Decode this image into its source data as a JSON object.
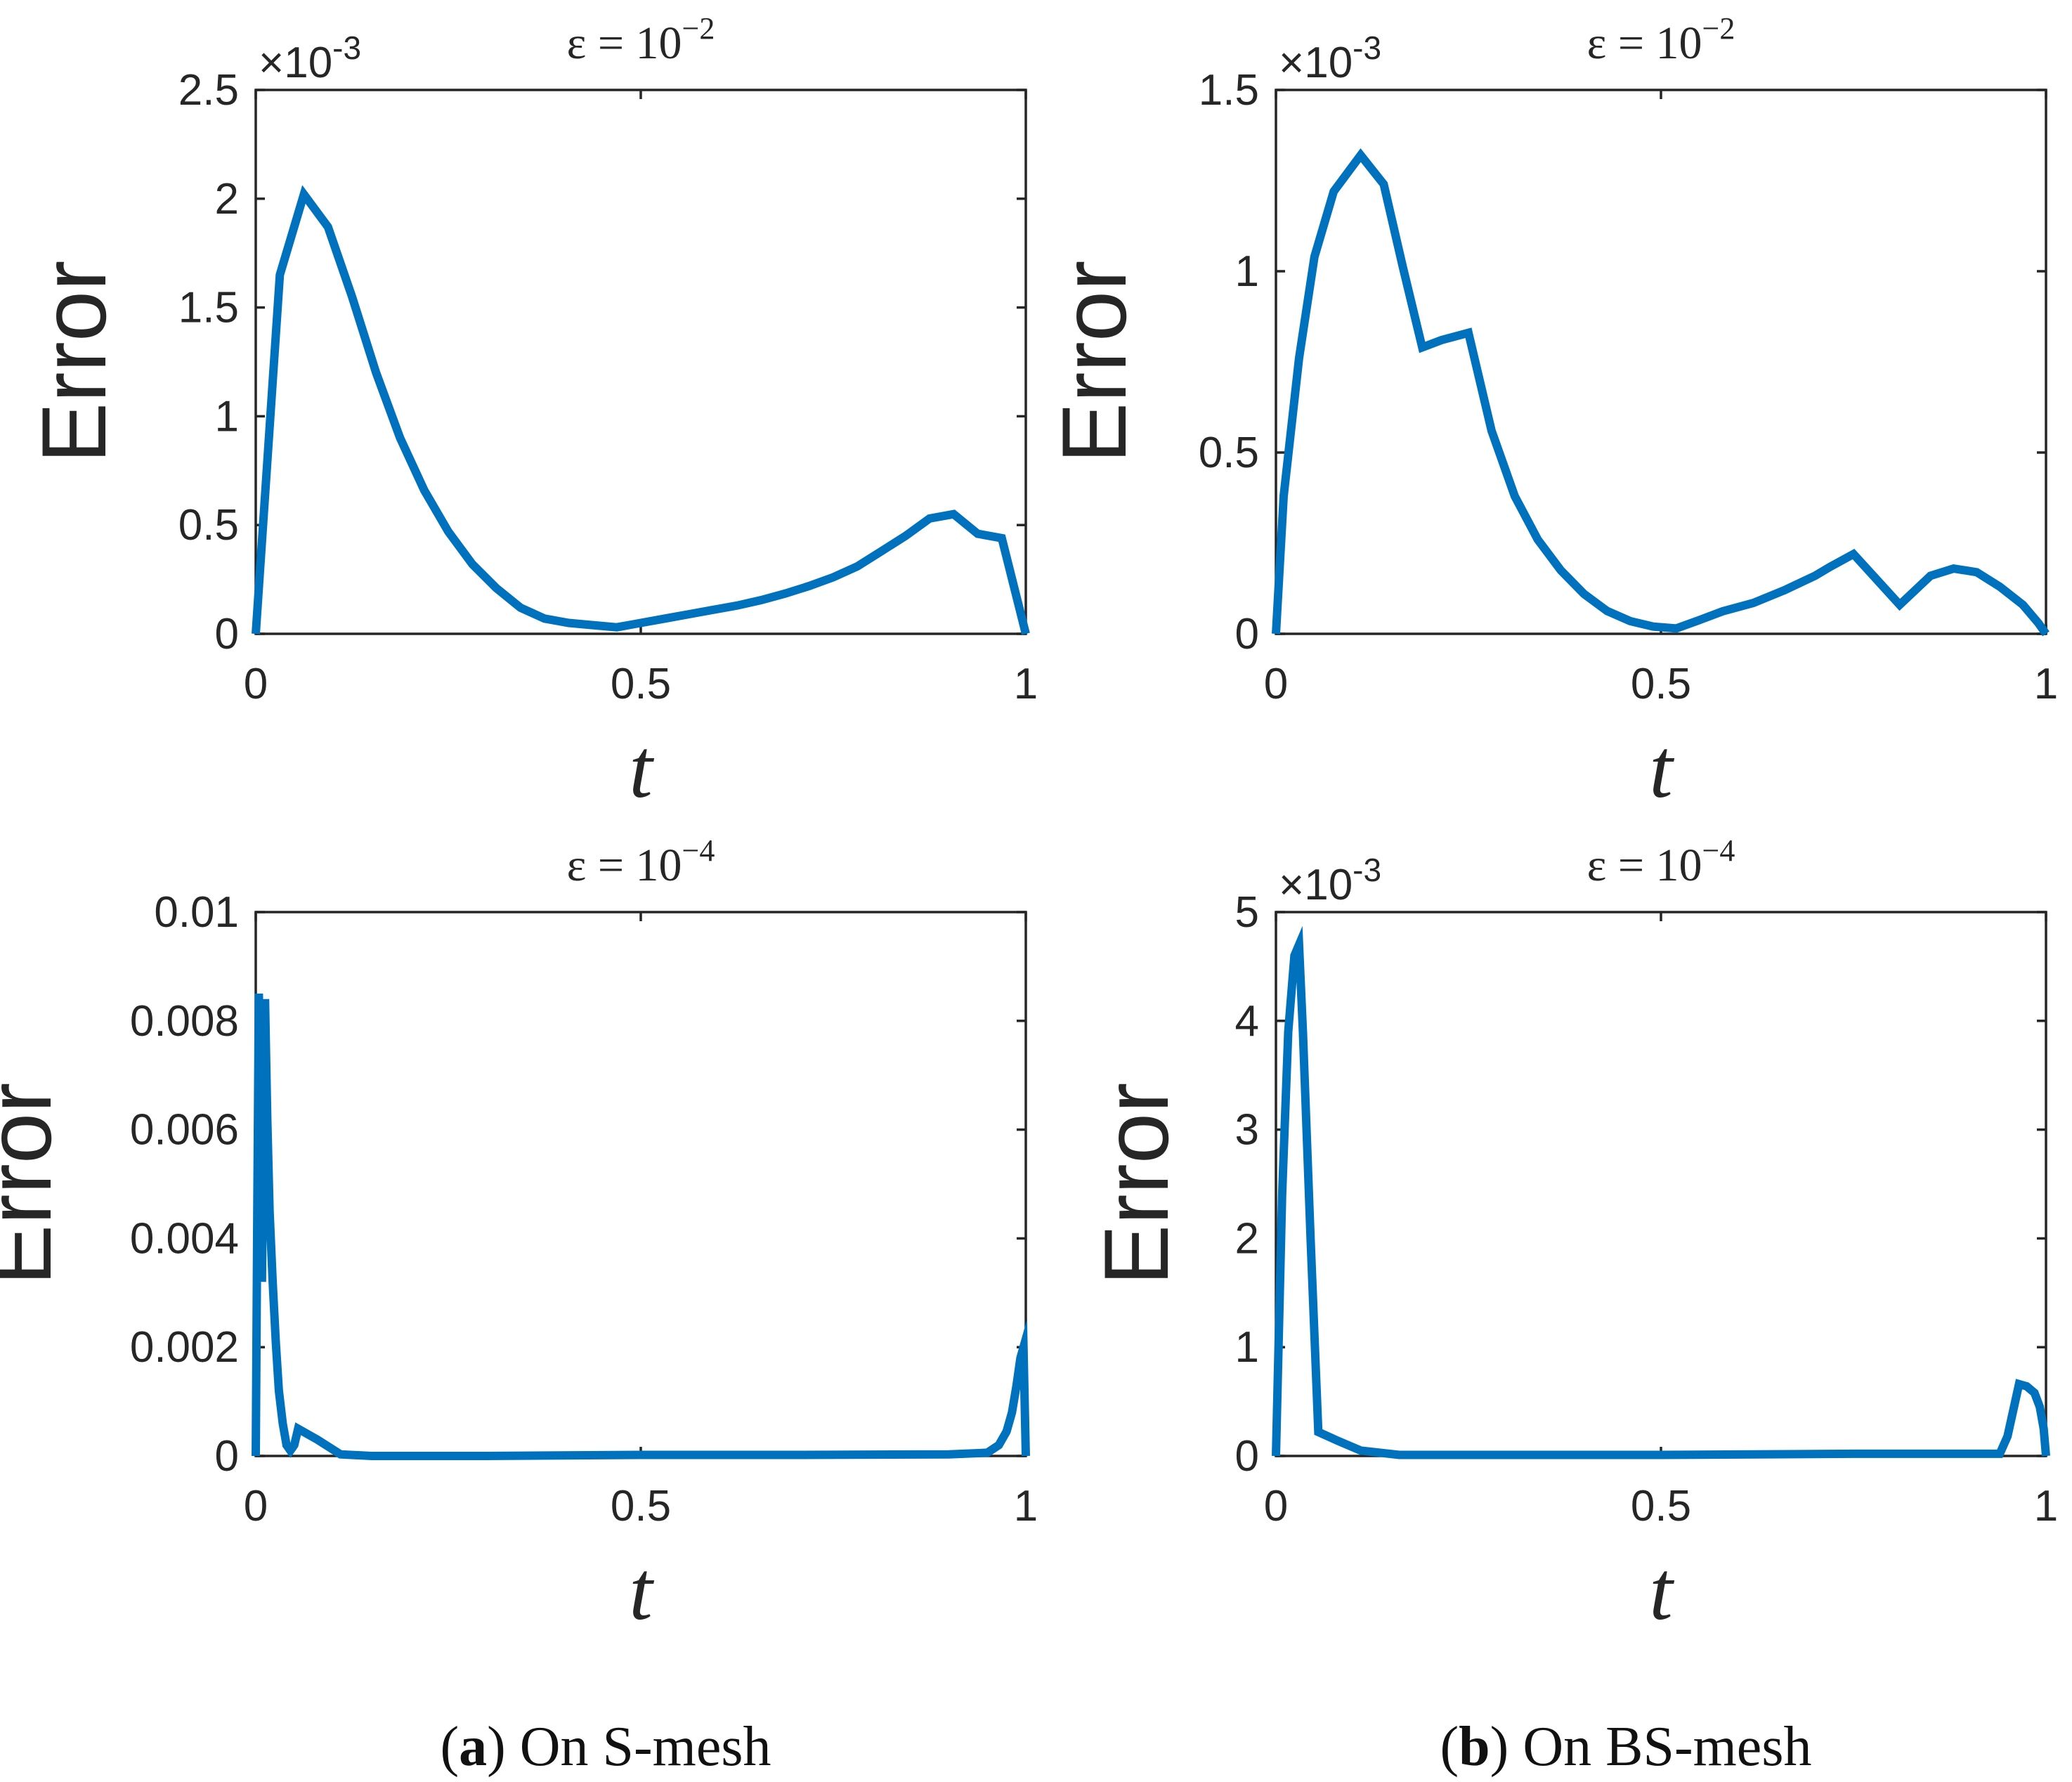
{
  "colors": {
    "series": "#0072bd",
    "axis": "#262626",
    "background": "#ffffff"
  },
  "chart_data": [
    {
      "type": "line",
      "title_prefix": "ε = 10",
      "title_exponent": "−2",
      "xlabel": "t",
      "ylabel": "Error",
      "exponent_label": "×10",
      "exponent_value": "-3",
      "xlim": [
        0,
        1
      ],
      "ylim": [
        0,
        2.5
      ],
      "xticks": [
        0,
        0.5,
        1
      ],
      "xtick_labels": [
        "0",
        "0.5",
        "1"
      ],
      "yticks": [
        0,
        0.5,
        1,
        1.5,
        2,
        2.5
      ],
      "ytick_labels": [
        "0",
        "0.5",
        "1",
        "1.5",
        "2",
        "2.5"
      ],
      "series": [
        {
          "name": "Error",
          "x": [
            0,
            0.03125,
            0.0625,
            0.09375,
            0.125,
            0.15625,
            0.1875,
            0.21875,
            0.25,
            0.28125,
            0.3125,
            0.34375,
            0.375,
            0.40625,
            0.4375,
            0.46875,
            0.5,
            0.53125,
            0.5625,
            0.59375,
            0.625,
            0.65625,
            0.6875,
            0.71875,
            0.75,
            0.78125,
            0.8125,
            0.84375,
            0.875,
            0.90625,
            0.9375,
            0.96875,
            1
          ],
          "values": [
            0,
            1.65,
            2.02,
            1.87,
            1.55,
            1.2,
            0.9,
            0.66,
            0.47,
            0.32,
            0.21,
            0.12,
            0.07,
            0.05,
            0.04,
            0.03,
            0.05,
            0.07,
            0.09,
            0.11,
            0.13,
            0.155,
            0.185,
            0.22,
            0.26,
            0.31,
            0.38,
            0.45,
            0.53,
            0.55,
            0.46,
            0.44,
            0
          ]
        }
      ]
    },
    {
      "type": "line",
      "title_prefix": "ε = 10",
      "title_exponent": "−2",
      "xlabel": "t",
      "ylabel": "Error",
      "exponent_label": "×10",
      "exponent_value": "-3",
      "xlim": [
        0,
        1
      ],
      "ylim": [
        0,
        1.5
      ],
      "xticks": [
        0,
        0.5,
        1
      ],
      "xtick_labels": [
        "0",
        "0.5",
        "1"
      ],
      "yticks": [
        0,
        0.5,
        1,
        1.5
      ],
      "ytick_labels": [
        "0",
        "0.5",
        "1",
        "1.5"
      ],
      "series": [
        {
          "name": "Error",
          "x": [
            0,
            0.01,
            0.03,
            0.05,
            0.075,
            0.11,
            0.14,
            0.165,
            0.19,
            0.215,
            0.25,
            0.28,
            0.31,
            0.34,
            0.37,
            0.4,
            0.43,
            0.46,
            0.49,
            0.52,
            0.55,
            0.58,
            0.62,
            0.66,
            0.7,
            0.72,
            0.75,
            0.78,
            0.81,
            0.85,
            0.88,
            0.91,
            0.94,
            0.97,
            0.99,
            1
          ],
          "values": [
            0,
            0.38,
            0.76,
            1.04,
            1.22,
            1.32,
            1.24,
            1.01,
            0.79,
            0.81,
            0.83,
            0.56,
            0.38,
            0.26,
            0.175,
            0.11,
            0.063,
            0.035,
            0.02,
            0.015,
            0.038,
            0.062,
            0.085,
            0.12,
            0.16,
            0.185,
            0.22,
            0.15,
            0.08,
            0.16,
            0.18,
            0.17,
            0.13,
            0.08,
            0.03,
            0
          ]
        }
      ]
    },
    {
      "type": "line",
      "title_prefix": "ε = 10",
      "title_exponent": "−4",
      "xlabel": "t",
      "ylabel": "Error",
      "xlim": [
        0,
        1
      ],
      "ylim": [
        0,
        0.01
      ],
      "xticks": [
        0,
        0.5,
        1
      ],
      "xtick_labels": [
        "0",
        "0.5",
        "1"
      ],
      "yticks": [
        0,
        0.002,
        0.004,
        0.006,
        0.008,
        0.01
      ],
      "ytick_labels": [
        "0",
        "0.002",
        "0.004",
        "0.006",
        "0.008",
        "0.01"
      ],
      "series": [
        {
          "name": "Error",
          "x": [
            0,
            0.002,
            0.004,
            0.006,
            0.008,
            0.01,
            0.012,
            0.015,
            0.018,
            0.022,
            0.026,
            0.03,
            0.035,
            0.04,
            0.045,
            0.05,
            0.055,
            0.08,
            0.11,
            0.15,
            0.2,
            0.3,
            0.5,
            0.7,
            0.9,
            0.95,
            0.965,
            0.975,
            0.982,
            0.988,
            0.993,
            0.997,
            1
          ],
          "values": [
            0,
            0.0045,
            0.0085,
            0.0068,
            0.0032,
            0.0058,
            0.0084,
            0.0062,
            0.0045,
            0.0032,
            0.0021,
            0.0012,
            0.0006,
            0.0002,
            0.0001,
            0.0002,
            0.0005,
            0.0003,
            3e-05,
            0.0,
            0.0,
            0.0,
            2e-05,
            2e-05,
            3e-05,
            6e-05,
            0.0002,
            0.00045,
            0.0008,
            0.0013,
            0.0018,
            0.002,
            0
          ]
        }
      ]
    },
    {
      "type": "line",
      "title_prefix": "ε = 10",
      "title_exponent": "−4",
      "xlabel": "t",
      "ylabel": "Error",
      "exponent_label": "×10",
      "exponent_value": "-3",
      "xlim": [
        0,
        1
      ],
      "ylim": [
        0,
        5
      ],
      "xticks": [
        0,
        0.5,
        1
      ],
      "xtick_labels": [
        "0",
        "0.5",
        "1"
      ],
      "yticks": [
        0,
        1,
        2,
        3,
        4,
        5
      ],
      "ytick_labels": [
        "0",
        "1",
        "2",
        "3",
        "4",
        "5"
      ],
      "series": [
        {
          "name": "Error",
          "x": [
            0,
            0.008,
            0.016,
            0.024,
            0.03,
            0.035,
            0.045,
            0.055,
            0.08,
            0.11,
            0.16,
            0.25,
            0.5,
            0.75,
            0.94,
            0.95,
            0.965,
            0.975,
            0.985,
            0.992,
            0.997,
            1
          ],
          "values": [
            0,
            2.4,
            3.9,
            4.6,
            4.7,
            3.9,
            2.0,
            0.22,
            0.14,
            0.05,
            0.01,
            0.01,
            0.01,
            0.02,
            0.02,
            0.18,
            0.66,
            0.64,
            0.58,
            0.45,
            0.25,
            0
          ]
        }
      ]
    }
  ],
  "captions": [
    {
      "letter": "a",
      "text": "On S-mesh"
    },
    {
      "letter": "b",
      "text": "On BS-mesh"
    }
  ]
}
